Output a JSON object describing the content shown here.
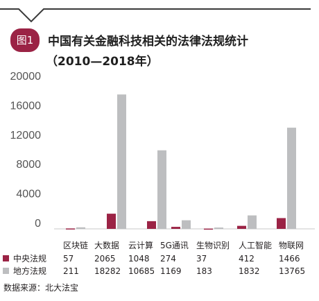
{
  "badge": "图1",
  "title_line1": "中国有关金融科技相关的法律法规统计",
  "title_line2": "（2010—2018年）",
  "source": "数据来源：北大法宝",
  "colors": {
    "central": "#9b2345",
    "local": "#bdbec0",
    "badge": "#9b2345",
    "axis": "#c8c8c8"
  },
  "chart_data": {
    "type": "bar",
    "categories": [
      "区块链",
      "大数据",
      "云计算",
      "5G通讯",
      "生物识别",
      "人工智能",
      "物联网"
    ],
    "series": [
      {
        "name": "中央法规",
        "values": [
          57,
          2065,
          1048,
          274,
          37,
          412,
          1466
        ],
        "labels": [
          "57",
          "2065",
          "1048",
          "274",
          "37",
          "412",
          "1466"
        ]
      },
      {
        "name": "地方法规",
        "values": [
          211,
          18282,
          10685,
          1169,
          183,
          1832,
          13765
        ],
        "labels": [
          "211",
          "18282",
          "10685",
          "1169",
          "183",
          "1832",
          "13765"
        ]
      }
    ],
    "yticks": [
      0,
      4000,
      8000,
      12000,
      16000,
      20000
    ],
    "ytick_labels": [
      "0",
      "4000",
      "8000",
      "12000",
      "16000",
      "20000"
    ],
    "ylim": [
      0,
      20000
    ],
    "grid": false,
    "legend": "table-left"
  }
}
